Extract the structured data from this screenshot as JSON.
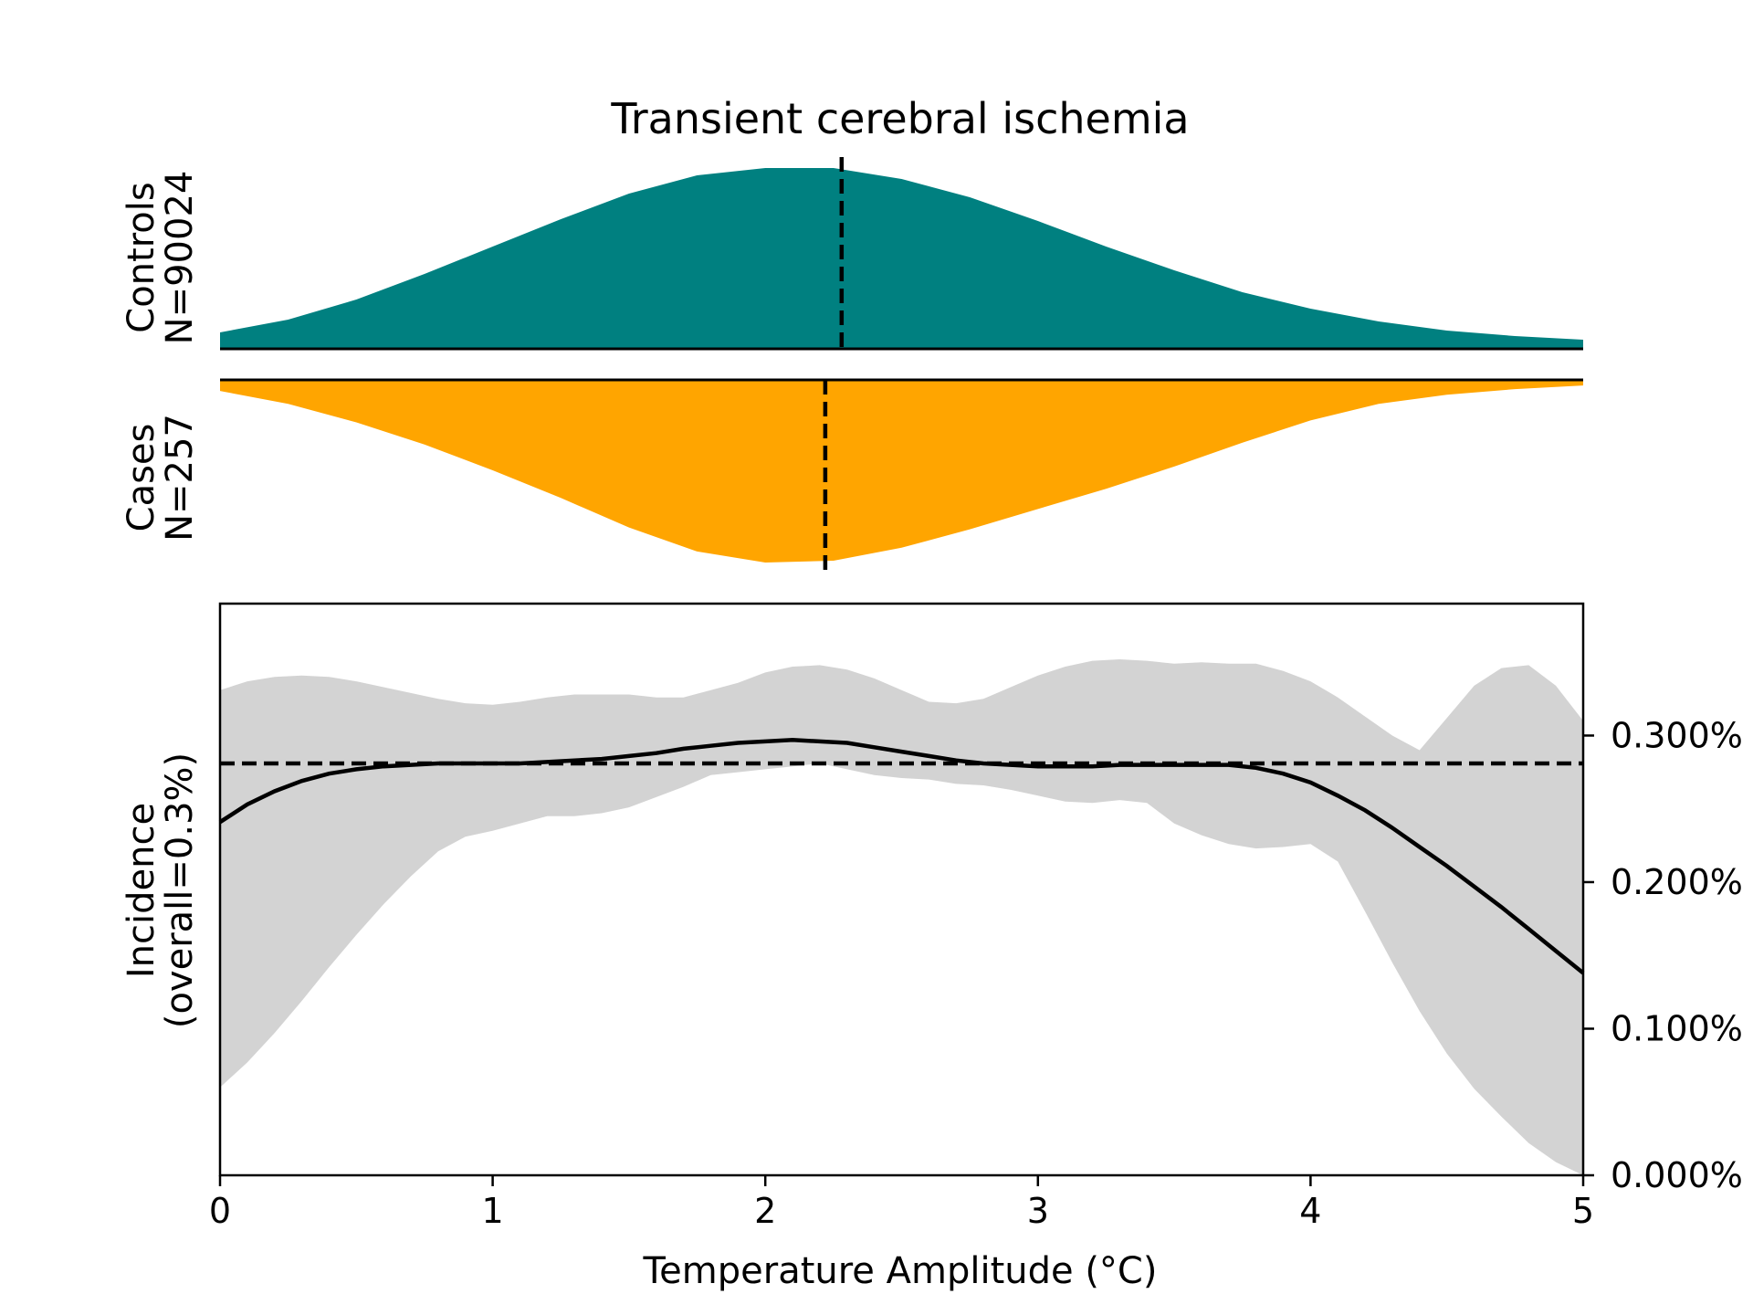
{
  "chart_data": {
    "title": "Transient cerebral ischemia",
    "xlabel": "Temperature Amplitude (°C)",
    "xlim": [
      0,
      5
    ],
    "x_ticks": [
      "0",
      "1",
      "2",
      "3",
      "4",
      "5"
    ],
    "controls": {
      "label": "Controls",
      "n_label": "N=90024",
      "color": "#008080",
      "median": 2.28,
      "x": [
        0,
        0.25,
        0.5,
        0.75,
        1,
        1.25,
        1.5,
        1.75,
        2,
        2.25,
        2.5,
        2.75,
        3,
        3.25,
        3.5,
        3.75,
        4,
        4.25,
        4.5,
        4.75,
        5
      ],
      "density": [
        0.09,
        0.16,
        0.27,
        0.41,
        0.56,
        0.71,
        0.85,
        0.95,
        0.99,
        0.99,
        0.93,
        0.83,
        0.7,
        0.56,
        0.43,
        0.31,
        0.22,
        0.15,
        0.1,
        0.07,
        0.05
      ]
    },
    "cases": {
      "label": "Cases",
      "n_label": "N=257",
      "color": "#ffa500",
      "median": 2.22,
      "x": [
        0,
        0.25,
        0.5,
        0.75,
        1,
        1.25,
        1.5,
        1.75,
        2,
        2.25,
        2.5,
        2.75,
        3,
        3.25,
        3.5,
        3.75,
        4,
        4.25,
        4.5,
        4.75,
        5
      ],
      "density": [
        0.06,
        0.13,
        0.23,
        0.35,
        0.49,
        0.64,
        0.8,
        0.93,
        0.99,
        0.98,
        0.91,
        0.81,
        0.7,
        0.59,
        0.47,
        0.34,
        0.22,
        0.13,
        0.08,
        0.05,
        0.03
      ]
    },
    "incidence": {
      "ylabel_line1": "Incidence",
      "ylabel_line2": "(overall=0.3%)",
      "ylim": [
        0,
        0.0039
      ],
      "y_ticks": [
        0,
        0.001,
        0.002,
        0.003
      ],
      "y_tick_labels": [
        "0.000%",
        "0.100%",
        "0.200%",
        "0.300%"
      ],
      "overall": 0.00281,
      "x": [
        0,
        0.1,
        0.2,
        0.3,
        0.4,
        0.5,
        0.6,
        0.7,
        0.8,
        0.9,
        1.0,
        1.1,
        1.2,
        1.3,
        1.4,
        1.5,
        1.6,
        1.7,
        1.8,
        1.9,
        2.0,
        2.1,
        2.2,
        2.3,
        2.4,
        2.5,
        2.6,
        2.7,
        2.8,
        2.9,
        3.0,
        3.1,
        3.2,
        3.3,
        3.4,
        3.5,
        3.6,
        3.7,
        3.8,
        3.9,
        4.0,
        4.1,
        4.2,
        4.3,
        4.4,
        4.5,
        4.6,
        4.7,
        4.8,
        4.9,
        5.0
      ],
      "mean": [
        0.00241,
        0.00253,
        0.00262,
        0.00269,
        0.00274,
        0.00277,
        0.00279,
        0.0028,
        0.00281,
        0.00281,
        0.00281,
        0.00281,
        0.00282,
        0.00283,
        0.00284,
        0.00286,
        0.00288,
        0.00291,
        0.00293,
        0.00295,
        0.00296,
        0.00297,
        0.00296,
        0.00295,
        0.00292,
        0.00289,
        0.00286,
        0.00283,
        0.00281,
        0.0028,
        0.00279,
        0.00279,
        0.00279,
        0.0028,
        0.0028,
        0.0028,
        0.0028,
        0.0028,
        0.00278,
        0.00274,
        0.00268,
        0.00259,
        0.00249,
        0.00237,
        0.00224,
        0.00211,
        0.00197,
        0.00183,
        0.00168,
        0.00153,
        0.00138
      ],
      "lower": [
        0.0006,
        0.00077,
        0.00097,
        0.00119,
        0.00142,
        0.00164,
        0.00185,
        0.00204,
        0.00221,
        0.00231,
        0.00235,
        0.0024,
        0.00245,
        0.00245,
        0.00247,
        0.00251,
        0.00258,
        0.00265,
        0.00273,
        0.00275,
        0.00277,
        0.00279,
        0.00281,
        0.00277,
        0.00273,
        0.00271,
        0.0027,
        0.00267,
        0.00266,
        0.00263,
        0.00259,
        0.00255,
        0.00254,
        0.00256,
        0.00254,
        0.0024,
        0.00232,
        0.00226,
        0.00223,
        0.00224,
        0.00226,
        0.00214,
        0.0018,
        0.00145,
        0.00112,
        0.00083,
        0.00059,
        0.0004,
        0.00022,
        9e-05,
        0.0
      ],
      "upper": [
        0.00331,
        0.00337,
        0.0034,
        0.00341,
        0.0034,
        0.00337,
        0.00333,
        0.00329,
        0.00325,
        0.00322,
        0.00321,
        0.00323,
        0.00326,
        0.00328,
        0.00328,
        0.00328,
        0.00326,
        0.00326,
        0.00331,
        0.00336,
        0.00343,
        0.00347,
        0.00348,
        0.00345,
        0.00339,
        0.00331,
        0.00323,
        0.00322,
        0.00325,
        0.00333,
        0.00341,
        0.00347,
        0.00351,
        0.00352,
        0.00351,
        0.00349,
        0.0035,
        0.00349,
        0.00349,
        0.00344,
        0.00337,
        0.00326,
        0.00313,
        0.003,
        0.0029,
        0.00312,
        0.00334,
        0.00346,
        0.00348,
        0.00334,
        0.0031
      ]
    }
  }
}
